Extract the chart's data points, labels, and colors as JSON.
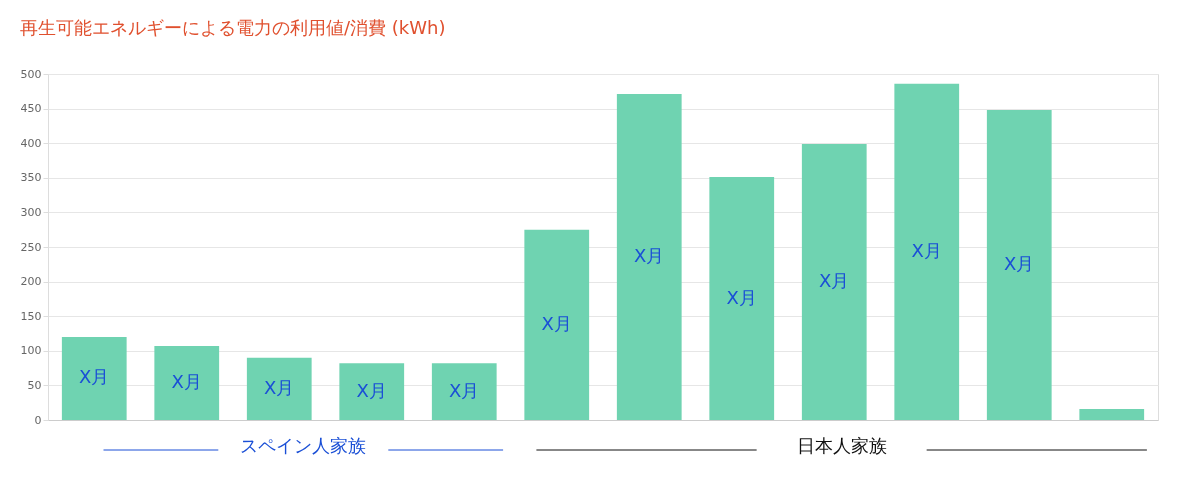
{
  "chart_data": {
    "type": "bar",
    "title": "再生可能エネルギーによる電力の利用値/消費 (kWh)",
    "categories": [
      null,
      null,
      null,
      null,
      null,
      null,
      null,
      null,
      null,
      null,
      null,
      null
    ],
    "values": [
      120,
      107,
      90,
      82,
      82,
      275,
      471,
      351,
      399,
      486,
      448,
      16
    ],
    "value_labels": [
      "X月",
      "X月",
      "X月",
      "X月",
      "X月",
      "X月",
      "X月",
      "X月",
      "X月",
      "X月",
      "X月",
      null
    ],
    "color": "#6fd3b1",
    "ylim": [
      0,
      500
    ],
    "yticks": [
      0,
      50,
      100,
      150,
      200,
      250,
      300,
      350,
      400,
      450,
      500
    ],
    "grid": "y",
    "tick_labels": "y",
    "annotations": [
      "スペイン人家族",
      "日本人家族"
    ]
  }
}
